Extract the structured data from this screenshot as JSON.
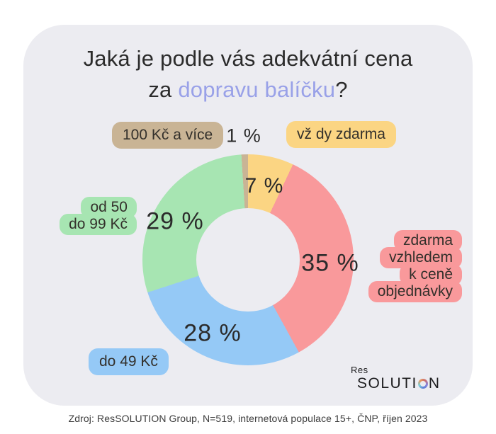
{
  "card": {
    "bg": "#ececf1"
  },
  "title": {
    "line1": "Jaká je podle vás adekvátní cena",
    "line2_pre": "za ",
    "line2_accent": "dopravu balíčku",
    "line2_suffix": "?",
    "text_color": "#2b2b2b",
    "accent_color": "#99a1e8"
  },
  "chart_data": {
    "type": "pie",
    "donut": true,
    "title": "Jaká je podle vás adekvátní cena za dopravu balíčku?",
    "categories": [
      "vž dy zdarma",
      "zdarma vzhledem k ceně objednávky",
      "do 49 Kč",
      "od 50 do 99 Kč",
      "100 Kč a více"
    ],
    "values": [
      7,
      35,
      28,
      29,
      1
    ],
    "labels": [
      "7 %",
      "35 %",
      "28 %",
      "29 %",
      "1 %"
    ],
    "unit": "%",
    "colors": [
      "#fbd583",
      "#f9999b",
      "#95c9f6",
      "#a7e5b2",
      "#c9b495"
    ],
    "start_angle_deg": 0,
    "direction": "clockwise",
    "legend_position": "around-chart"
  },
  "badges": {
    "yellow": {
      "label": "vž dy zdarma",
      "color": "#fbd583"
    },
    "red": {
      "lines": [
        "zdarma",
        "vzhledem",
        "k ceně",
        "objednávky"
      ],
      "color": "#f9999b"
    },
    "blue": {
      "label": "do 49 Kč",
      "color": "#95c9f6"
    },
    "green": {
      "lines": [
        "od 50",
        "do 99 Kč"
      ],
      "color": "#a7e5b2"
    },
    "tan": {
      "label": "100 Kč a více",
      "color": "#c9b495"
    }
  },
  "logo": {
    "top": "Res",
    "word_start": "SOLUTI",
    "word_end": "N",
    "o_ring_colors": [
      "#e89a5c",
      "#c96a6e",
      "#8b85dd",
      "#5a7fd8",
      "#7fd0d8"
    ]
  },
  "footer": "Zdroj: ResSOLUTION Group, N=519, internetová populace 15+, ČNP, říjen 2023"
}
